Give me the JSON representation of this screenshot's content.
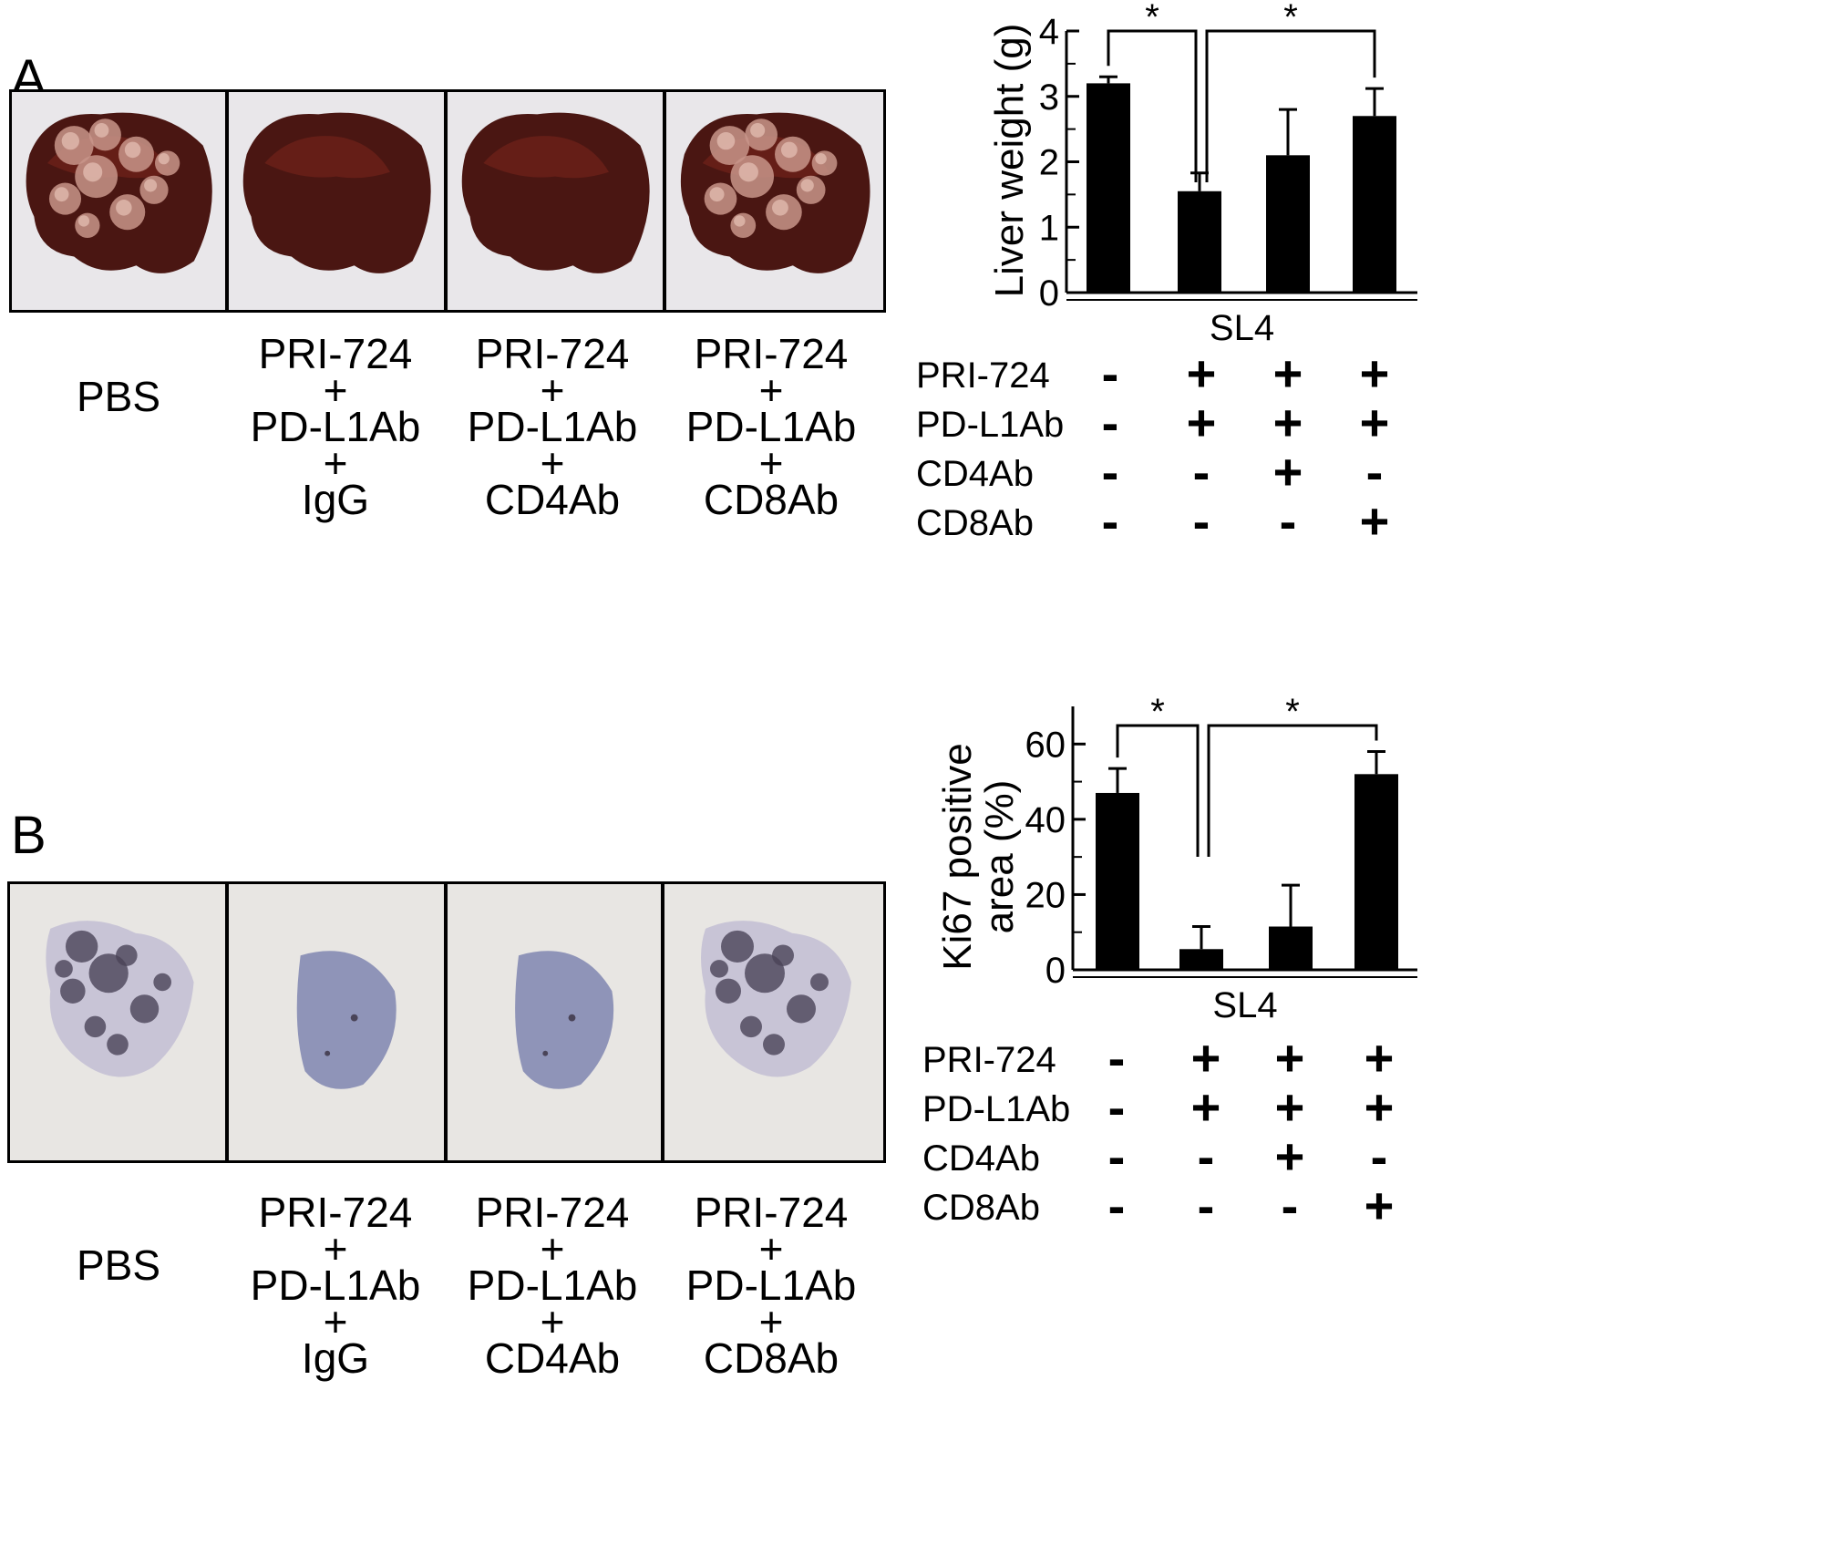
{
  "panels": [
    {
      "letter": "A",
      "images": [
        {
          "caption": [
            "PBS"
          ],
          "kind": "liver-tumor"
        },
        {
          "caption": [
            "PRI-724",
            "+",
            "PD-L1Ab",
            "+",
            "IgG"
          ],
          "kind": "liver-normal"
        },
        {
          "caption": [
            "PRI-724",
            "+",
            "PD-L1Ab",
            "+",
            "CD4Ab"
          ],
          "kind": "liver-normal"
        },
        {
          "caption": [
            "PRI-724",
            "+",
            "PD-L1Ab",
            "+",
            "CD8Ab"
          ],
          "kind": "liver-tumor"
        }
      ],
      "treatment_table": {
        "rows": [
          {
            "label": "PRI-724",
            "values": [
              "-",
              "+",
              "+",
              "+"
            ]
          },
          {
            "label": "PD-L1Ab",
            "values": [
              "-",
              "+",
              "+",
              "+"
            ]
          },
          {
            "label": "CD4Ab",
            "values": [
              "-",
              "-",
              "+",
              "-"
            ]
          },
          {
            "label": "CD8Ab",
            "values": [
              "-",
              "-",
              "-",
              "+"
            ]
          }
        ]
      }
    },
    {
      "letter": "B",
      "images": [
        {
          "caption": [
            "PBS"
          ],
          "kind": "ki67-high"
        },
        {
          "caption": [
            "PRI-724",
            "+",
            "PD-L1Ab",
            "+",
            "IgG"
          ],
          "kind": "ki67-low"
        },
        {
          "caption": [
            "PRI-724",
            "+",
            "PD-L1Ab",
            "+",
            "CD4Ab"
          ],
          "kind": "ki67-low"
        },
        {
          "caption": [
            "PRI-724",
            "+",
            "PD-L1Ab",
            "+",
            "CD8Ab"
          ],
          "kind": "ki67-high"
        }
      ],
      "treatment_table": {
        "rows": [
          {
            "label": "PRI-724",
            "values": [
              "-",
              "+",
              "+",
              "+"
            ]
          },
          {
            "label": "PD-L1Ab",
            "values": [
              "-",
              "+",
              "+",
              "+"
            ]
          },
          {
            "label": "CD4Ab",
            "values": [
              "-",
              "-",
              "+",
              "-"
            ]
          },
          {
            "label": "CD8Ab",
            "values": [
              "-",
              "-",
              "-",
              "+"
            ]
          }
        ]
      }
    }
  ],
  "chart_data": [
    {
      "type": "bar",
      "ylabel": "Liver weight (g)",
      "xlabel": "SL4",
      "ylim": [
        0,
        4
      ],
      "yticks": [
        0,
        1,
        2,
        3,
        4
      ],
      "values": [
        3.2,
        1.55,
        2.1,
        2.7
      ],
      "errors": [
        0.1,
        0.28,
        0.7,
        0.42
      ],
      "significance": [
        {
          "from": 0,
          "to": 1,
          "label": "*"
        },
        {
          "from": 1,
          "to": 3,
          "label": "*"
        }
      ],
      "grid": false,
      "color": "#000000"
    },
    {
      "type": "bar",
      "ylabel": "Ki67 positive area (%)",
      "ylabel_lines": [
        "Ki67 positive",
        "area (%)"
      ],
      "xlabel": "SL4",
      "ylim": [
        0,
        70
      ],
      "yticks": [
        0,
        20,
        40,
        60
      ],
      "values": [
        47,
        5.5,
        11.5,
        52
      ],
      "errors": [
        6.5,
        6,
        11,
        6
      ],
      "significance": [
        {
          "from": 0,
          "to": 1,
          "label": "*"
        },
        {
          "from": 1,
          "to": 3,
          "label": "*"
        }
      ],
      "grid": false,
      "color": "#000000"
    }
  ]
}
